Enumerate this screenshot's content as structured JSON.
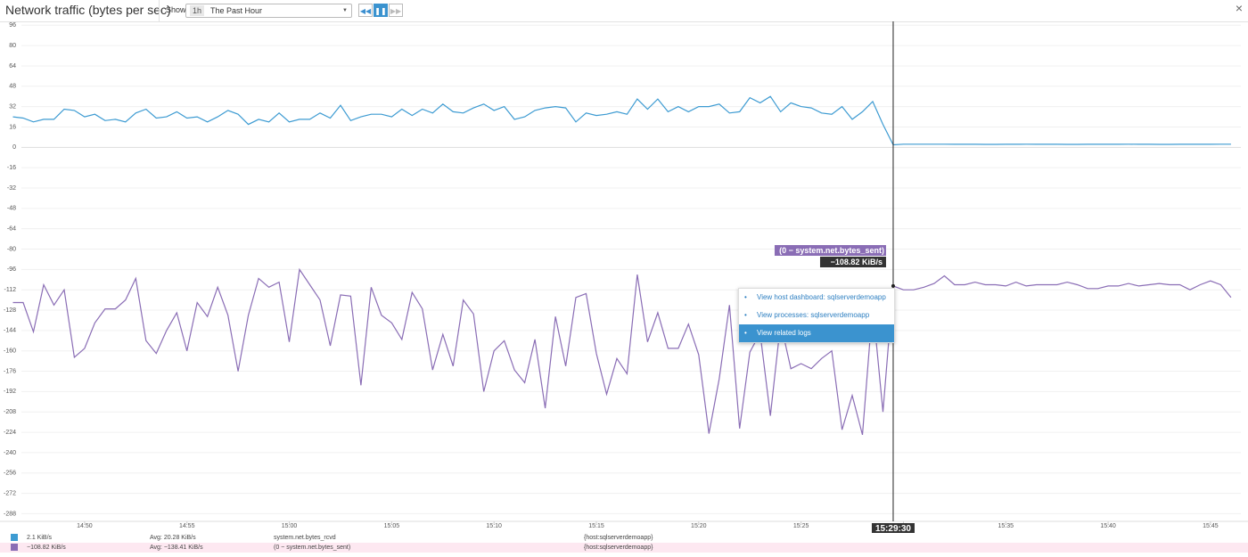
{
  "header": {
    "title": "Network traffic (bytes per sec)",
    "show_label": "Show",
    "range_short": "1h",
    "range_text": "The Past Hour",
    "close": "×"
  },
  "chart_data": {
    "type": "line",
    "x": [
      "14:46:30",
      "14:47:00",
      "14:47:30",
      "14:48:00",
      "14:48:30",
      "14:49:00",
      "14:49:30",
      "14:50:00",
      "14:50:30",
      "14:51:00",
      "14:51:30",
      "14:52:00",
      "14:52:30",
      "14:53:00",
      "14:53:30",
      "14:54:00",
      "14:54:30",
      "14:55:00",
      "14:55:30",
      "14:56:00",
      "14:56:30",
      "14:57:00",
      "14:57:30",
      "14:58:00",
      "14:58:30",
      "14:59:00",
      "14:59:30",
      "15:00:00",
      "15:00:30",
      "15:01:00",
      "15:01:30",
      "15:02:00",
      "15:02:30",
      "15:03:00",
      "15:03:30",
      "15:04:00",
      "15:04:30",
      "15:05:00",
      "15:05:30",
      "15:06:00",
      "15:06:30",
      "15:07:00",
      "15:07:30",
      "15:08:00",
      "15:08:30",
      "15:09:00",
      "15:09:30",
      "15:10:00",
      "15:10:30",
      "15:11:00",
      "15:11:30",
      "15:12:00",
      "15:12:30",
      "15:13:00",
      "15:13:30",
      "15:14:00",
      "15:14:30",
      "15:15:00",
      "15:15:30",
      "15:16:00",
      "15:16:30",
      "15:17:00",
      "15:17:30",
      "15:18:00",
      "15:18:30",
      "15:19:00",
      "15:19:30",
      "15:20:00",
      "15:20:30",
      "15:21:00",
      "15:21:30",
      "15:22:00",
      "15:22:30",
      "15:23:00",
      "15:23:30",
      "15:24:00",
      "15:24:30",
      "15:25:00",
      "15:25:30",
      "15:26:00",
      "15:26:30",
      "15:27:00",
      "15:27:30",
      "15:28:00",
      "15:28:30",
      "15:29:00",
      "15:29:30",
      "15:30:00",
      "15:30:30",
      "15:31:00",
      "15:31:30",
      "15:32:00",
      "15:32:30",
      "15:33:00",
      "15:33:30",
      "15:34:00",
      "15:34:30",
      "15:35:00",
      "15:35:30",
      "15:36:00",
      "15:36:30",
      "15:37:00",
      "15:37:30",
      "15:38:00",
      "15:38:30",
      "15:39:00",
      "15:39:30",
      "15:40:00",
      "15:40:30",
      "15:41:00",
      "15:41:30",
      "15:42:00",
      "15:42:30",
      "15:43:00",
      "15:43:30",
      "15:44:00",
      "15:44:30",
      "15:45:00",
      "15:45:30",
      "15:46:00"
    ],
    "series": [
      {
        "name": "system.net.bytes_rcvd",
        "color": "#3d9bd2",
        "values": [
          24,
          23,
          20,
          22,
          22,
          30,
          29,
          24,
          26,
          21,
          22,
          20,
          27,
          30,
          23,
          24,
          28,
          23,
          24,
          20,
          24,
          29,
          26,
          18,
          22,
          20,
          27,
          20,
          22,
          22,
          27,
          23,
          33,
          21,
          24,
          26,
          26,
          24,
          30,
          25,
          30,
          27,
          34,
          28,
          27,
          31,
          34,
          29,
          32,
          22,
          24,
          29,
          31,
          32,
          31,
          20,
          27,
          25,
          26,
          28,
          26,
          38,
          30,
          38,
          28,
          32,
          28,
          32,
          32,
          34,
          27,
          28,
          39,
          35,
          40,
          28,
          35,
          32,
          31,
          27,
          26,
          32,
          22,
          28,
          36,
          18,
          2,
          2.5,
          2.5,
          2.5,
          2.5,
          2.5,
          2.4,
          2.4,
          2.4,
          2.3,
          2.3,
          2.4,
          2.4,
          2.5,
          2.4,
          2.4,
          2.4,
          2.3,
          2.3,
          2.4,
          2.4,
          2.4,
          2.4,
          2.5,
          2.4,
          2.4,
          2.3,
          2.3,
          2.4,
          2.4,
          2.4,
          2.4,
          2.5,
          2.5
        ]
      },
      {
        "name": "(0 − system.net.bytes_sent)",
        "color": "#8a6db5",
        "values": [
          -122,
          -122,
          -145,
          -108,
          -124,
          -112,
          -165,
          -158,
          -138,
          -127,
          -127,
          -120,
          -103,
          -152,
          -162,
          -144,
          -130,
          -160,
          -122,
          -133,
          -110,
          -132,
          -176,
          -132,
          -103,
          -110,
          -106,
          -153,
          -96,
          -108,
          -120,
          -156,
          -116,
          -117,
          -187,
          -110,
          -132,
          -138,
          -151,
          -114,
          -127,
          -175,
          -147,
          -172,
          -120,
          -131,
          -192,
          -160,
          -152,
          -175,
          -185,
          -151,
          -205,
          -133,
          -172,
          -118,
          -115,
          -162,
          -194,
          -166,
          -178,
          -100,
          -153,
          -130,
          -158,
          -158,
          -139,
          -163,
          -225,
          -182,
          -124,
          -221,
          -161,
          -146,
          -211,
          -138,
          -174,
          -170,
          -174,
          -166,
          -160,
          -222,
          -195,
          -226,
          -124,
          -208,
          -109,
          -112,
          -112,
          -110,
          -107,
          -101,
          -108,
          -108,
          -106,
          -108,
          -108,
          -109,
          -106,
          -109,
          -108,
          -108,
          -108,
          -106,
          -108,
          -111,
          -111,
          -109,
          -109,
          -107,
          -109,
          -108,
          -107,
          -108,
          -108,
          -112,
          -108,
          -105,
          -108,
          -118
        ]
      }
    ],
    "xlim": [
      "14:45:52",
      "15:46:50"
    ],
    "xticks": [
      "14:50",
      "14:55",
      "15:00",
      "15:05",
      "15:10",
      "15:15",
      "15:20",
      "15:25",
      "15:30",
      "15:35",
      "15:40",
      "15:45"
    ],
    "ylim": [
      -294,
      99
    ],
    "yticks": [
      96,
      80,
      64,
      48,
      32,
      16,
      0,
      -16,
      -32,
      -48,
      -64,
      -80,
      -96,
      -112,
      -128,
      -144,
      -160,
      -176,
      -192,
      -208,
      -224,
      -240,
      -256,
      -272,
      -288
    ],
    "grid": true,
    "cursor": {
      "x": "15:29:30",
      "label": "−108.82 KiB/s"
    }
  },
  "menu": [
    "View host dashboard: sqlserverdemoapp",
    "View processes: sqlserverdemoapp",
    "View related logs"
  ],
  "legend": [
    {
      "current": "2.1 KiB/s",
      "avg": "Avg: 20.28 KiB/s",
      "scope": "{host:sqlserverdemoapp}"
    },
    {
      "current": "−108.82 KiB/s",
      "avg": "Avg: −138.41 KiB/s",
      "scope": "{host:sqlserverdemoapp}"
    }
  ]
}
